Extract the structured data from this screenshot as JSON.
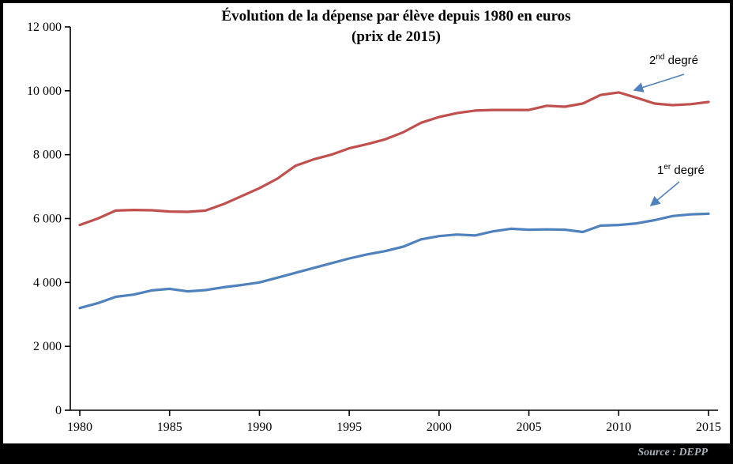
{
  "page": {
    "source": "Source : DEPP"
  },
  "chart_data": {
    "type": "line",
    "title": "Évolution de la dépense par élève depuis 1980 en euros",
    "subtitle": "(prix de 2015)",
    "xlabel": "",
    "ylabel": "",
    "ylim": [
      0,
      12000
    ],
    "ytick_step": 2000,
    "ytick_labels": [
      "0",
      "2 000",
      "4 000",
      "6 000",
      "8 000",
      "10 000",
      "12 000"
    ],
    "xtick_years": [
      1980,
      1985,
      1990,
      1995,
      2000,
      2005,
      2010,
      2015
    ],
    "x_years": [
      1980,
      1981,
      1982,
      1983,
      1984,
      1985,
      1986,
      1987,
      1988,
      1989,
      1990,
      1991,
      1992,
      1993,
      1994,
      1995,
      1996,
      1997,
      1998,
      1999,
      2000,
      2001,
      2002,
      2003,
      2004,
      2005,
      2006,
      2007,
      2008,
      2009,
      2010,
      2011,
      2012,
      2013,
      2014,
      2015
    ],
    "grid": false,
    "legend_position": "inline-annotations",
    "arrow_color": "#4F81BD",
    "series": [
      {
        "name": "2nd degré",
        "label": {
          "base": "2",
          "sup": "nd",
          "rest": " degré"
        },
        "color": "#C0504D",
        "values": [
          5800,
          6000,
          6250,
          6270,
          6260,
          6220,
          6210,
          6250,
          6450,
          6700,
          6950,
          7250,
          7650,
          7850,
          8000,
          8200,
          8330,
          8480,
          8700,
          9000,
          9180,
          9300,
          9380,
          9400,
          9400,
          9400,
          9530,
          9500,
          9600,
          9870,
          9950,
          9780,
          9600,
          9550,
          9580,
          9650
        ]
      },
      {
        "name": "1er degré",
        "label": {
          "base": "1",
          "sup": "er",
          "rest": " degré"
        },
        "color": "#4F81BD",
        "values": [
          3200,
          3350,
          3550,
          3620,
          3750,
          3800,
          3720,
          3760,
          3850,
          3920,
          4000,
          4150,
          4300,
          4450,
          4600,
          4750,
          4880,
          4980,
          5120,
          5350,
          5450,
          5500,
          5470,
          5600,
          5680,
          5650,
          5660,
          5650,
          5580,
          5780,
          5800,
          5850,
          5950,
          6080,
          6130,
          6150
        ]
      }
    ]
  }
}
